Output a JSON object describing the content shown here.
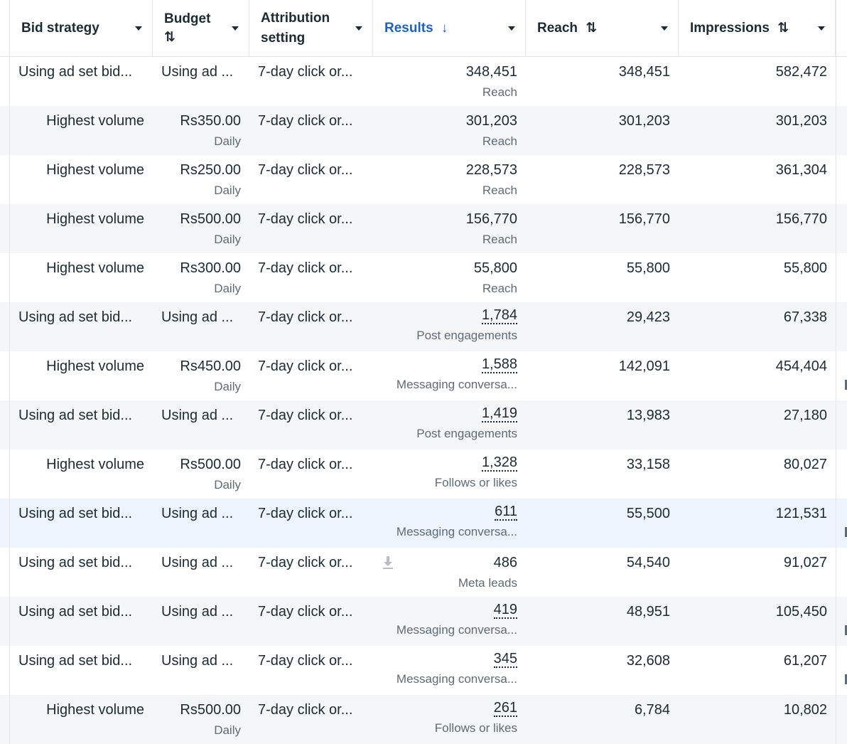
{
  "header": {
    "columns": [
      {
        "key": "bid_strategy",
        "label": "Bid strategy",
        "sort": ""
      },
      {
        "key": "budget",
        "label": "Budget",
        "sort": "⇅"
      },
      {
        "key": "attribution",
        "label": "Attribution setting",
        "sort": ""
      },
      {
        "key": "results",
        "label": "Results",
        "sort": "↓"
      },
      {
        "key": "reach",
        "label": "Reach",
        "sort": "⇅"
      },
      {
        "key": "impressions",
        "label": "Impressions",
        "sort": "⇅"
      }
    ]
  },
  "rows": [
    {
      "bid": "Using ad set bid...",
      "budget": "Using ad ...",
      "budget_sub": "",
      "attr": "7-day click or...",
      "results": "348,451",
      "results_sub": "Reach",
      "reach": "348,451",
      "impressions": "582,472",
      "dotted": false
    },
    {
      "bid": "Highest volume",
      "budget": "Rs350.00",
      "budget_sub": "Daily",
      "attr": "7-day click or...",
      "results": "301,203",
      "results_sub": "Reach",
      "reach": "301,203",
      "impressions": "301,203",
      "dotted": false
    },
    {
      "bid": "Highest volume",
      "budget": "Rs250.00",
      "budget_sub": "Daily",
      "attr": "7-day click or...",
      "results": "228,573",
      "results_sub": "Reach",
      "reach": "228,573",
      "impressions": "361,304",
      "dotted": false
    },
    {
      "bid": "Highest volume",
      "budget": "Rs500.00",
      "budget_sub": "Daily",
      "attr": "7-day click or...",
      "results": "156,770",
      "results_sub": "Reach",
      "reach": "156,770",
      "impressions": "156,770",
      "dotted": false
    },
    {
      "bid": "Highest volume",
      "budget": "Rs300.00",
      "budget_sub": "Daily",
      "attr": "7-day click or...",
      "results": "55,800",
      "results_sub": "Reach",
      "reach": "55,800",
      "impressions": "55,800",
      "dotted": false
    },
    {
      "bid": "Using ad set bid...",
      "budget": "Using ad ...",
      "budget_sub": "",
      "attr": "7-day click or...",
      "results": "1,784",
      "results_sub": "Post engagements",
      "reach": "29,423",
      "impressions": "67,338",
      "dotted": true
    },
    {
      "bid": "Highest volume",
      "budget": "Rs450.00",
      "budget_sub": "Daily",
      "attr": "7-day click or...",
      "results": "1,588",
      "results_sub": "Messaging conversa...",
      "reach": "142,091",
      "impressions": "454,404",
      "dotted": true
    },
    {
      "bid": "Using ad set bid...",
      "budget": "Using ad ...",
      "budget_sub": "",
      "attr": "7-day click or...",
      "results": "1,419",
      "results_sub": "Post engagements",
      "reach": "13,983",
      "impressions": "27,180",
      "dotted": true
    },
    {
      "bid": "Highest volume",
      "budget": "Rs500.00",
      "budget_sub": "Daily",
      "attr": "7-day click or...",
      "results": "1,328",
      "results_sub": "Follows or likes",
      "reach": "33,158",
      "impressions": "80,027",
      "dotted": true
    },
    {
      "bid": "Using ad set bid...",
      "budget": "Using ad ...",
      "budget_sub": "",
      "attr": "7-day click or...",
      "results": "611",
      "results_sub": "Messaging conversa...",
      "reach": "55,500",
      "impressions": "121,531",
      "dotted": true
    },
    {
      "bid": "Using ad set bid...",
      "budget": "Using ad ...",
      "budget_sub": "",
      "attr": "7-day click or...",
      "results": "486",
      "results_sub": "Meta leads",
      "reach": "54,540",
      "impressions": "91,027",
      "dotted": false,
      "download": true
    },
    {
      "bid": "Using ad set bid...",
      "budget": "Using ad ...",
      "budget_sub": "",
      "attr": "7-day click or...",
      "results": "419",
      "results_sub": "Messaging conversa...",
      "reach": "48,951",
      "impressions": "105,450",
      "dotted": true
    },
    {
      "bid": "Using ad set bid...",
      "budget": "Using ad ...",
      "budget_sub": "",
      "attr": "7-day click or...",
      "results": "345",
      "results_sub": "Messaging conversa...",
      "reach": "32,608",
      "impressions": "61,207",
      "dotted": true
    },
    {
      "bid": "Highest volume",
      "budget": "Rs500.00",
      "budget_sub": "Daily",
      "attr": "7-day click or...",
      "results": "261",
      "results_sub": "Follows or likes",
      "reach": "6,784",
      "impressions": "10,802",
      "dotted": true
    }
  ],
  "selected_row": 9,
  "colors": {
    "accent": "#1b62c9",
    "row_alt": "#f5f6f7",
    "row_selected": "#edf4fd"
  }
}
